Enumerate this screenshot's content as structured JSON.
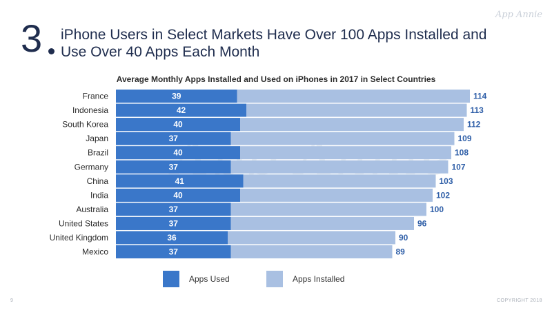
{
  "header": {
    "slide_number": "3",
    "title": "iPhone Users in Select Markets Have Over 100 Apps Installed and Use Over 40 Apps Each Month",
    "logo": "App Annie"
  },
  "footer": {
    "page": "9",
    "copyright": "COPYRIGHT 2018"
  },
  "colors": {
    "apps_used": "#3a77c9",
    "apps_installed": "#a9c0e2",
    "value_label": "#2f5fa8"
  },
  "chart_data": {
    "type": "bar",
    "orientation": "horizontal",
    "stacked_overlay": true,
    "title": "Average Monthly Apps Installed and Used on iPhones in 2017 in Select Countries",
    "categories": [
      "France",
      "Indonesia",
      "South Korea",
      "Japan",
      "Brazil",
      "Germany",
      "China",
      "India",
      "Australia",
      "United States",
      "United Kingdom",
      "Mexico"
    ],
    "series": [
      {
        "name": "Apps Used",
        "values": [
          39,
          42,
          40,
          37,
          40,
          37,
          41,
          40,
          37,
          37,
          36,
          37
        ]
      },
      {
        "name": "Apps Installed",
        "values": [
          114,
          113,
          112,
          109,
          108,
          107,
          103,
          102,
          100,
          96,
          90,
          89
        ]
      }
    ],
    "legend": [
      "Apps Used",
      "Apps Installed"
    ],
    "legend_position": "bottom",
    "grid": false
  }
}
